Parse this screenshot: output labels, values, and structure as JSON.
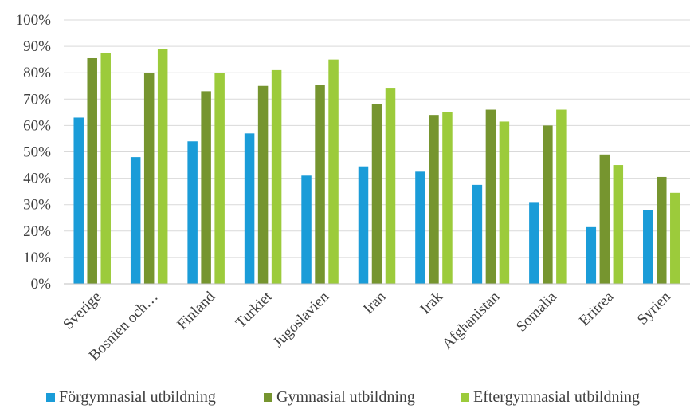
{
  "chart_data": {
    "type": "bar",
    "title": "",
    "xlabel": "",
    "ylabel": "",
    "ylim": [
      0,
      100
    ],
    "yticks": [
      0,
      10,
      20,
      30,
      40,
      50,
      60,
      70,
      80,
      90,
      100
    ],
    "ytick_labels": [
      "0%",
      "10%",
      "20%",
      "30%",
      "40%",
      "50%",
      "60%",
      "70%",
      "80%",
      "90%",
      "100%"
    ],
    "grid": true,
    "legend_position": "bottom",
    "categories": [
      "Sverige",
      "Bosnien och…",
      "Finland",
      "Turkiet",
      "Jugoslavien",
      "Iran",
      "Irak",
      "Afghanistan",
      "Somalia",
      "Eritrea",
      "Syrien"
    ],
    "series": [
      {
        "name": "Förgymnasial utbildning",
        "color": "#1a9cd8",
        "values": [
          63,
          48,
          54,
          57,
          41,
          44.5,
          42.5,
          37.5,
          31,
          21.5,
          28
        ]
      },
      {
        "name": "Gymnasial utbildning",
        "color": "#76952f",
        "values": [
          85.5,
          80,
          73,
          75,
          75.5,
          68,
          64,
          66,
          60,
          49,
          40.5
        ]
      },
      {
        "name": "Eftergymnasial utbildning",
        "color": "#9ccb3b",
        "values": [
          87.5,
          89,
          80,
          81,
          85,
          74,
          65,
          61.5,
          66,
          45,
          34.5
        ]
      }
    ]
  }
}
